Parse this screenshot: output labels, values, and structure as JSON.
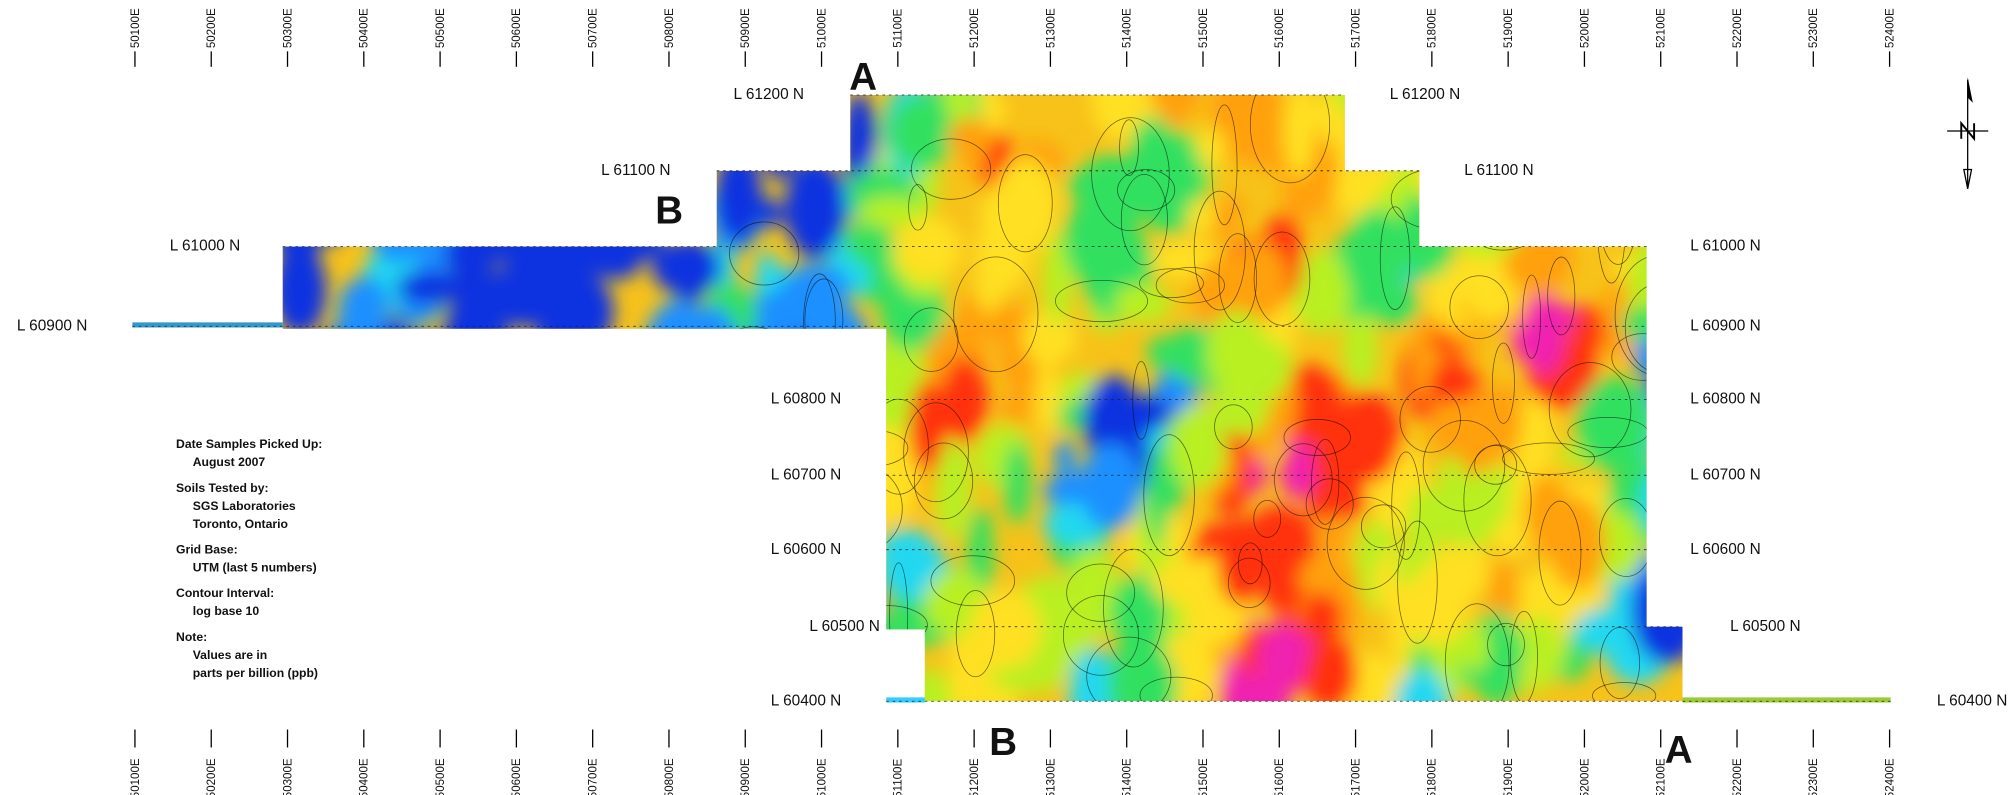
{
  "eastings": [
    "50100E",
    "50200E",
    "50300E",
    "50400E",
    "50500E",
    "50600E",
    "50700E",
    "50800E",
    "50900E",
    "51000E",
    "51100E",
    "51200E",
    "51300E",
    "51400E",
    "51500E",
    "51600E",
    "51700E",
    "51800E",
    "51900E",
    "52000E",
    "52100E",
    "52200E",
    "52300E",
    "52400E"
  ],
  "lines": [
    {
      "left": "L 61200 N",
      "right": "L 61200 N"
    },
    {
      "left": "L 61100 N",
      "right": "L 61100 N"
    },
    {
      "left": "L 61000 N",
      "right": "L 61000 N"
    },
    {
      "left": "L 60900 N",
      "right": "L 60900 N"
    },
    {
      "left": "L 60800 N",
      "right": "L 60800 N"
    },
    {
      "left": "L 60700 N",
      "right": "L 60700 N"
    },
    {
      "left": "L 60600 N",
      "right": "L 60600 N"
    },
    {
      "left": "L 60500 N",
      "right": "L 60500 N"
    },
    {
      "left": "L 60400 N",
      "right": "L 60400 N"
    }
  ],
  "sections": {
    "top_a": "A",
    "top_b": "B",
    "bottom_b": "B",
    "bottom_a": "A"
  },
  "notes": [
    {
      "heading": "Date Samples Picked Up:",
      "lines": [
        "August 2007"
      ]
    },
    {
      "heading": "Soils Tested by:",
      "lines": [
        "SGS Laboratories",
        "Toronto, Ontario"
      ]
    },
    {
      "heading": "Grid Base:",
      "lines": [
        "UTM (last 5 numbers)"
      ]
    },
    {
      "heading": "Contour Interval:",
      "lines": [
        "log base 10"
      ]
    },
    {
      "heading": "Note:",
      "lines": [
        "Values are in",
        "parts per billion (ppb)"
      ]
    }
  ]
}
